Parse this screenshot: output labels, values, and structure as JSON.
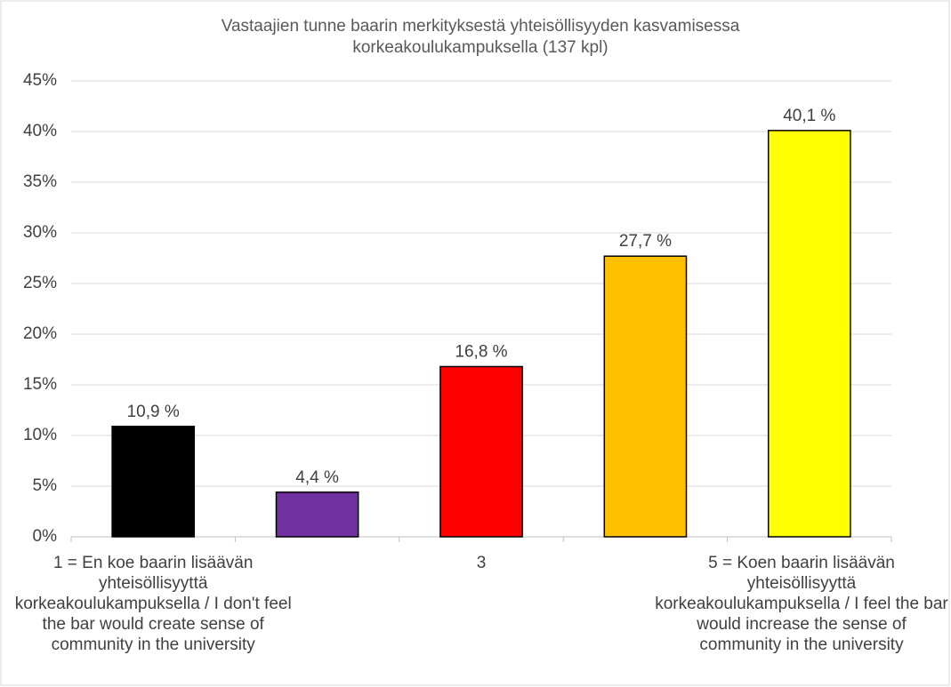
{
  "chart_data": {
    "type": "bar",
    "title": "Vastaajien tunne baarin merkityksestä yhteisöllisyyden kasvamisessa korkeakoulukampuksella (137 kpl)",
    "categories": [
      "1 = En koe baarin lisäävän yhteisöllisyyttä korkeakoulukampuksella / I don't feel the bar would create sense of community in the university",
      null,
      "3",
      null,
      "5 = Koen baarin lisäävän yhteisöllisyyttä korkeakoulukampuksella / I feel the bar would increase the sense of community in the university"
    ],
    "values": [
      10.9,
      4.4,
      16.8,
      27.7,
      40.1
    ],
    "value_labels": [
      "10,9 %",
      "4,4 %",
      "16,8 %",
      "27,7 %",
      "40,1 %"
    ],
    "colors": [
      "#000000",
      "#7030a0",
      "#ff0000",
      "#ffc000",
      "#ffff00"
    ],
    "ylim": [
      0,
      45
    ],
    "yticks": [
      {
        "value": 0,
        "label": "0%"
      },
      {
        "value": 5,
        "label": "5%"
      },
      {
        "value": 10,
        "label": "10%"
      },
      {
        "value": 15,
        "label": "15%"
      },
      {
        "value": 20,
        "label": "20%"
      },
      {
        "value": 25,
        "label": "25%"
      },
      {
        "value": 30,
        "label": "30%"
      },
      {
        "value": 35,
        "label": "35%"
      },
      {
        "value": 40,
        "label": "40%"
      },
      {
        "value": 45,
        "label": "45%"
      }
    ],
    "grid": true
  }
}
